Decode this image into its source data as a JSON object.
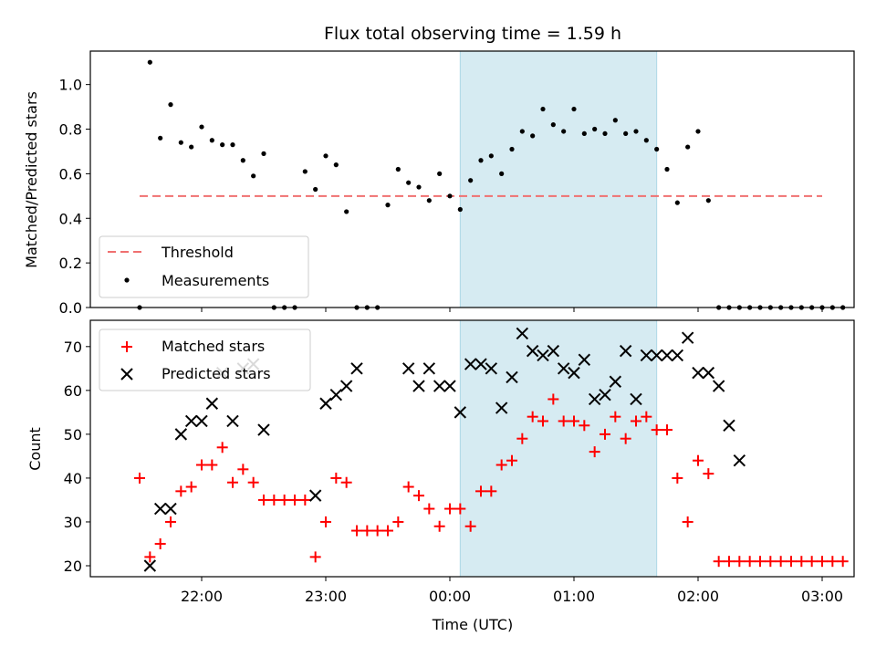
{
  "chart_data": [
    {
      "type": "scatter",
      "title": "Flux total observing time = 1.59 h",
      "xlabel": "",
      "ylabel": "Matched/Predicted stars",
      "ylim": [
        0,
        1.15
      ],
      "yticks": [
        "0.0",
        "0.2",
        "0.4",
        "0.6",
        "0.8",
        "1.0"
      ],
      "shaded_region": {
        "start": "00:05",
        "end": "01:40",
        "color": "#add8e6"
      },
      "threshold": {
        "name": "Threshold",
        "value": 0.5,
        "x_start": "21:30",
        "x_end": "03:00",
        "color": "#f07070",
        "style": "dashed"
      },
      "legend": {
        "placement": "lower-left",
        "entries": [
          "Threshold",
          "Measurements"
        ]
      },
      "series": [
        {
          "name": "Measurements",
          "marker": "dot",
          "color": "#000000",
          "points": [
            [
              "21:30",
              0.0
            ],
            [
              "21:35",
              1.1
            ],
            [
              "21:40",
              0.76
            ],
            [
              "21:45",
              0.91
            ],
            [
              "21:50",
              0.74
            ],
            [
              "21:55",
              0.72
            ],
            [
              "22:00",
              0.81
            ],
            [
              "22:05",
              0.75
            ],
            [
              "22:10",
              0.73
            ],
            [
              "22:15",
              0.73
            ],
            [
              "22:20",
              0.66
            ],
            [
              "22:25",
              0.59
            ],
            [
              "22:30",
              0.69
            ],
            [
              "22:35",
              0.0
            ],
            [
              "22:40",
              0.0
            ],
            [
              "22:45",
              0.0
            ],
            [
              "22:50",
              0.61
            ],
            [
              "22:55",
              0.53
            ],
            [
              "23:00",
              0.68
            ],
            [
              "23:05",
              0.64
            ],
            [
              "23:10",
              0.43
            ],
            [
              "23:15",
              0.0
            ],
            [
              "23:20",
              0.0
            ],
            [
              "23:25",
              0.0
            ],
            [
              "23:30",
              0.46
            ],
            [
              "23:35",
              0.62
            ],
            [
              "23:40",
              0.56
            ],
            [
              "23:45",
              0.54
            ],
            [
              "23:50",
              0.48
            ],
            [
              "23:55",
              0.6
            ],
            [
              "00:00",
              0.5
            ],
            [
              "00:05",
              0.44
            ],
            [
              "00:10",
              0.57
            ],
            [
              "00:15",
              0.66
            ],
            [
              "00:20",
              0.68
            ],
            [
              "00:25",
              0.6
            ],
            [
              "00:30",
              0.71
            ],
            [
              "00:35",
              0.79
            ],
            [
              "00:40",
              0.77
            ],
            [
              "00:45",
              0.89
            ],
            [
              "00:50",
              0.82
            ],
            [
              "00:55",
              0.79
            ],
            [
              "01:00",
              0.89
            ],
            [
              "01:05",
              0.78
            ],
            [
              "01:10",
              0.8
            ],
            [
              "01:15",
              0.78
            ],
            [
              "01:20",
              0.84
            ],
            [
              "01:25",
              0.78
            ],
            [
              "01:30",
              0.79
            ],
            [
              "01:35",
              0.75
            ],
            [
              "01:40",
              0.71
            ],
            [
              "01:45",
              0.62
            ],
            [
              "01:50",
              0.47
            ],
            [
              "01:55",
              0.72
            ],
            [
              "02:00",
              0.79
            ],
            [
              "02:05",
              0.48
            ],
            [
              "02:10",
              0.0
            ],
            [
              "02:15",
              0.0
            ],
            [
              "02:20",
              0.0
            ],
            [
              "02:25",
              0.0
            ],
            [
              "02:30",
              0.0
            ],
            [
              "02:35",
              0.0
            ],
            [
              "02:40",
              0.0
            ],
            [
              "02:45",
              0.0
            ],
            [
              "02:50",
              0.0
            ],
            [
              "02:55",
              0.0
            ],
            [
              "03:00",
              0.0
            ],
            [
              "03:05",
              0.0
            ],
            [
              "03:10",
              0.0
            ]
          ]
        }
      ]
    },
    {
      "type": "scatter",
      "title": "",
      "xlabel": "Time (UTC)",
      "ylabel": "Count",
      "ylim": [
        17.5,
        76
      ],
      "yticks": [
        "20",
        "30",
        "40",
        "50",
        "60",
        "70"
      ],
      "xticks": [
        "22:00",
        "23:00",
        "00:00",
        "01:00",
        "02:00",
        "03:00"
      ],
      "shaded_region": {
        "start": "00:05",
        "end": "01:40",
        "color": "#add8e6"
      },
      "legend": {
        "placement": "upper-left",
        "entries": [
          "Matched stars",
          "Predicted stars"
        ]
      },
      "series": [
        {
          "name": "Matched stars",
          "marker": "plus",
          "color": "#ff0000",
          "points": [
            [
              "21:30",
              40
            ],
            [
              "21:35",
              22
            ],
            [
              "21:40",
              25
            ],
            [
              "21:45",
              30
            ],
            [
              "21:50",
              37
            ],
            [
              "21:55",
              38
            ],
            [
              "22:00",
              43
            ],
            [
              "22:05",
              43
            ],
            [
              "22:10",
              47
            ],
            [
              "22:15",
              39
            ],
            [
              "22:20",
              42
            ],
            [
              "22:25",
              39
            ],
            [
              "22:30",
              35
            ],
            [
              "22:35",
              35
            ],
            [
              "22:40",
              35
            ],
            [
              "22:45",
              35
            ],
            [
              "22:50",
              35
            ],
            [
              "22:55",
              22
            ],
            [
              "23:00",
              30
            ],
            [
              "23:05",
              40
            ],
            [
              "23:10",
              39
            ],
            [
              "23:15",
              28
            ],
            [
              "23:20",
              28
            ],
            [
              "23:25",
              28
            ],
            [
              "23:30",
              28
            ],
            [
              "23:35",
              30
            ],
            [
              "23:40",
              38
            ],
            [
              "23:45",
              36
            ],
            [
              "23:50",
              33
            ],
            [
              "23:55",
              29
            ],
            [
              "00:00",
              33
            ],
            [
              "00:05",
              33
            ],
            [
              "00:10",
              29
            ],
            [
              "00:15",
              37
            ],
            [
              "00:20",
              37
            ],
            [
              "00:25",
              43
            ],
            [
              "00:30",
              44
            ],
            [
              "00:35",
              49
            ],
            [
              "00:40",
              54
            ],
            [
              "00:45",
              53
            ],
            [
              "00:50",
              58
            ],
            [
              "00:55",
              53
            ],
            [
              "01:00",
              53
            ],
            [
              "01:05",
              52
            ],
            [
              "01:10",
              46
            ],
            [
              "01:15",
              50
            ],
            [
              "01:20",
              54
            ],
            [
              "01:25",
              49
            ],
            [
              "01:30",
              53
            ],
            [
              "01:35",
              54
            ],
            [
              "01:40",
              51
            ],
            [
              "01:45",
              51
            ],
            [
              "01:50",
              40
            ],
            [
              "01:55",
              30
            ],
            [
              "02:00",
              44
            ],
            [
              "02:05",
              41
            ],
            [
              "02:10",
              21
            ],
            [
              "02:15",
              21
            ],
            [
              "02:20",
              21
            ],
            [
              "02:25",
              21
            ],
            [
              "02:30",
              21
            ],
            [
              "02:35",
              21
            ],
            [
              "02:40",
              21
            ],
            [
              "02:45",
              21
            ],
            [
              "02:50",
              21
            ],
            [
              "02:55",
              21
            ],
            [
              "03:00",
              21
            ],
            [
              "03:05",
              21
            ],
            [
              "03:10",
              21
            ]
          ]
        },
        {
          "name": "Predicted stars",
          "marker": "x",
          "color": "#000000",
          "points": [
            [
              "21:35",
              20
            ],
            [
              "21:40",
              33
            ],
            [
              "21:45",
              33
            ],
            [
              "21:50",
              50
            ],
            [
              "21:55",
              53
            ],
            [
              "22:00",
              53
            ],
            [
              "22:05",
              57
            ],
            [
              "22:10",
              64
            ],
            [
              "22:15",
              53
            ],
            [
              "22:20",
              65
            ],
            [
              "22:25",
              66
            ],
            [
              "22:30",
              51
            ],
            [
              "22:55",
              36
            ],
            [
              "23:00",
              57
            ],
            [
              "23:05",
              59
            ],
            [
              "23:10",
              61
            ],
            [
              "23:15",
              65
            ],
            [
              "23:40",
              65
            ],
            [
              "23:45",
              61
            ],
            [
              "23:50",
              65
            ],
            [
              "23:55",
              61
            ],
            [
              "00:00",
              61
            ],
            [
              "00:05",
              55
            ],
            [
              "00:10",
              66
            ],
            [
              "00:15",
              66
            ],
            [
              "00:20",
              65
            ],
            [
              "00:25",
              56
            ],
            [
              "00:30",
              63
            ],
            [
              "00:35",
              73
            ],
            [
              "00:40",
              69
            ],
            [
              "00:45",
              68
            ],
            [
              "00:50",
              69
            ],
            [
              "00:55",
              65
            ],
            [
              "01:00",
              64
            ],
            [
              "01:05",
              67
            ],
            [
              "01:10",
              58
            ],
            [
              "01:15",
              59
            ],
            [
              "01:20",
              62
            ],
            [
              "01:25",
              69
            ],
            [
              "01:30",
              58
            ],
            [
              "01:35",
              68
            ],
            [
              "01:40",
              68
            ],
            [
              "01:45",
              68
            ],
            [
              "01:50",
              68
            ],
            [
              "01:55",
              72
            ],
            [
              "02:00",
              64
            ],
            [
              "02:05",
              64
            ],
            [
              "02:10",
              61
            ],
            [
              "02:15",
              52
            ],
            [
              "02:20",
              44
            ]
          ]
        }
      ]
    }
  ]
}
